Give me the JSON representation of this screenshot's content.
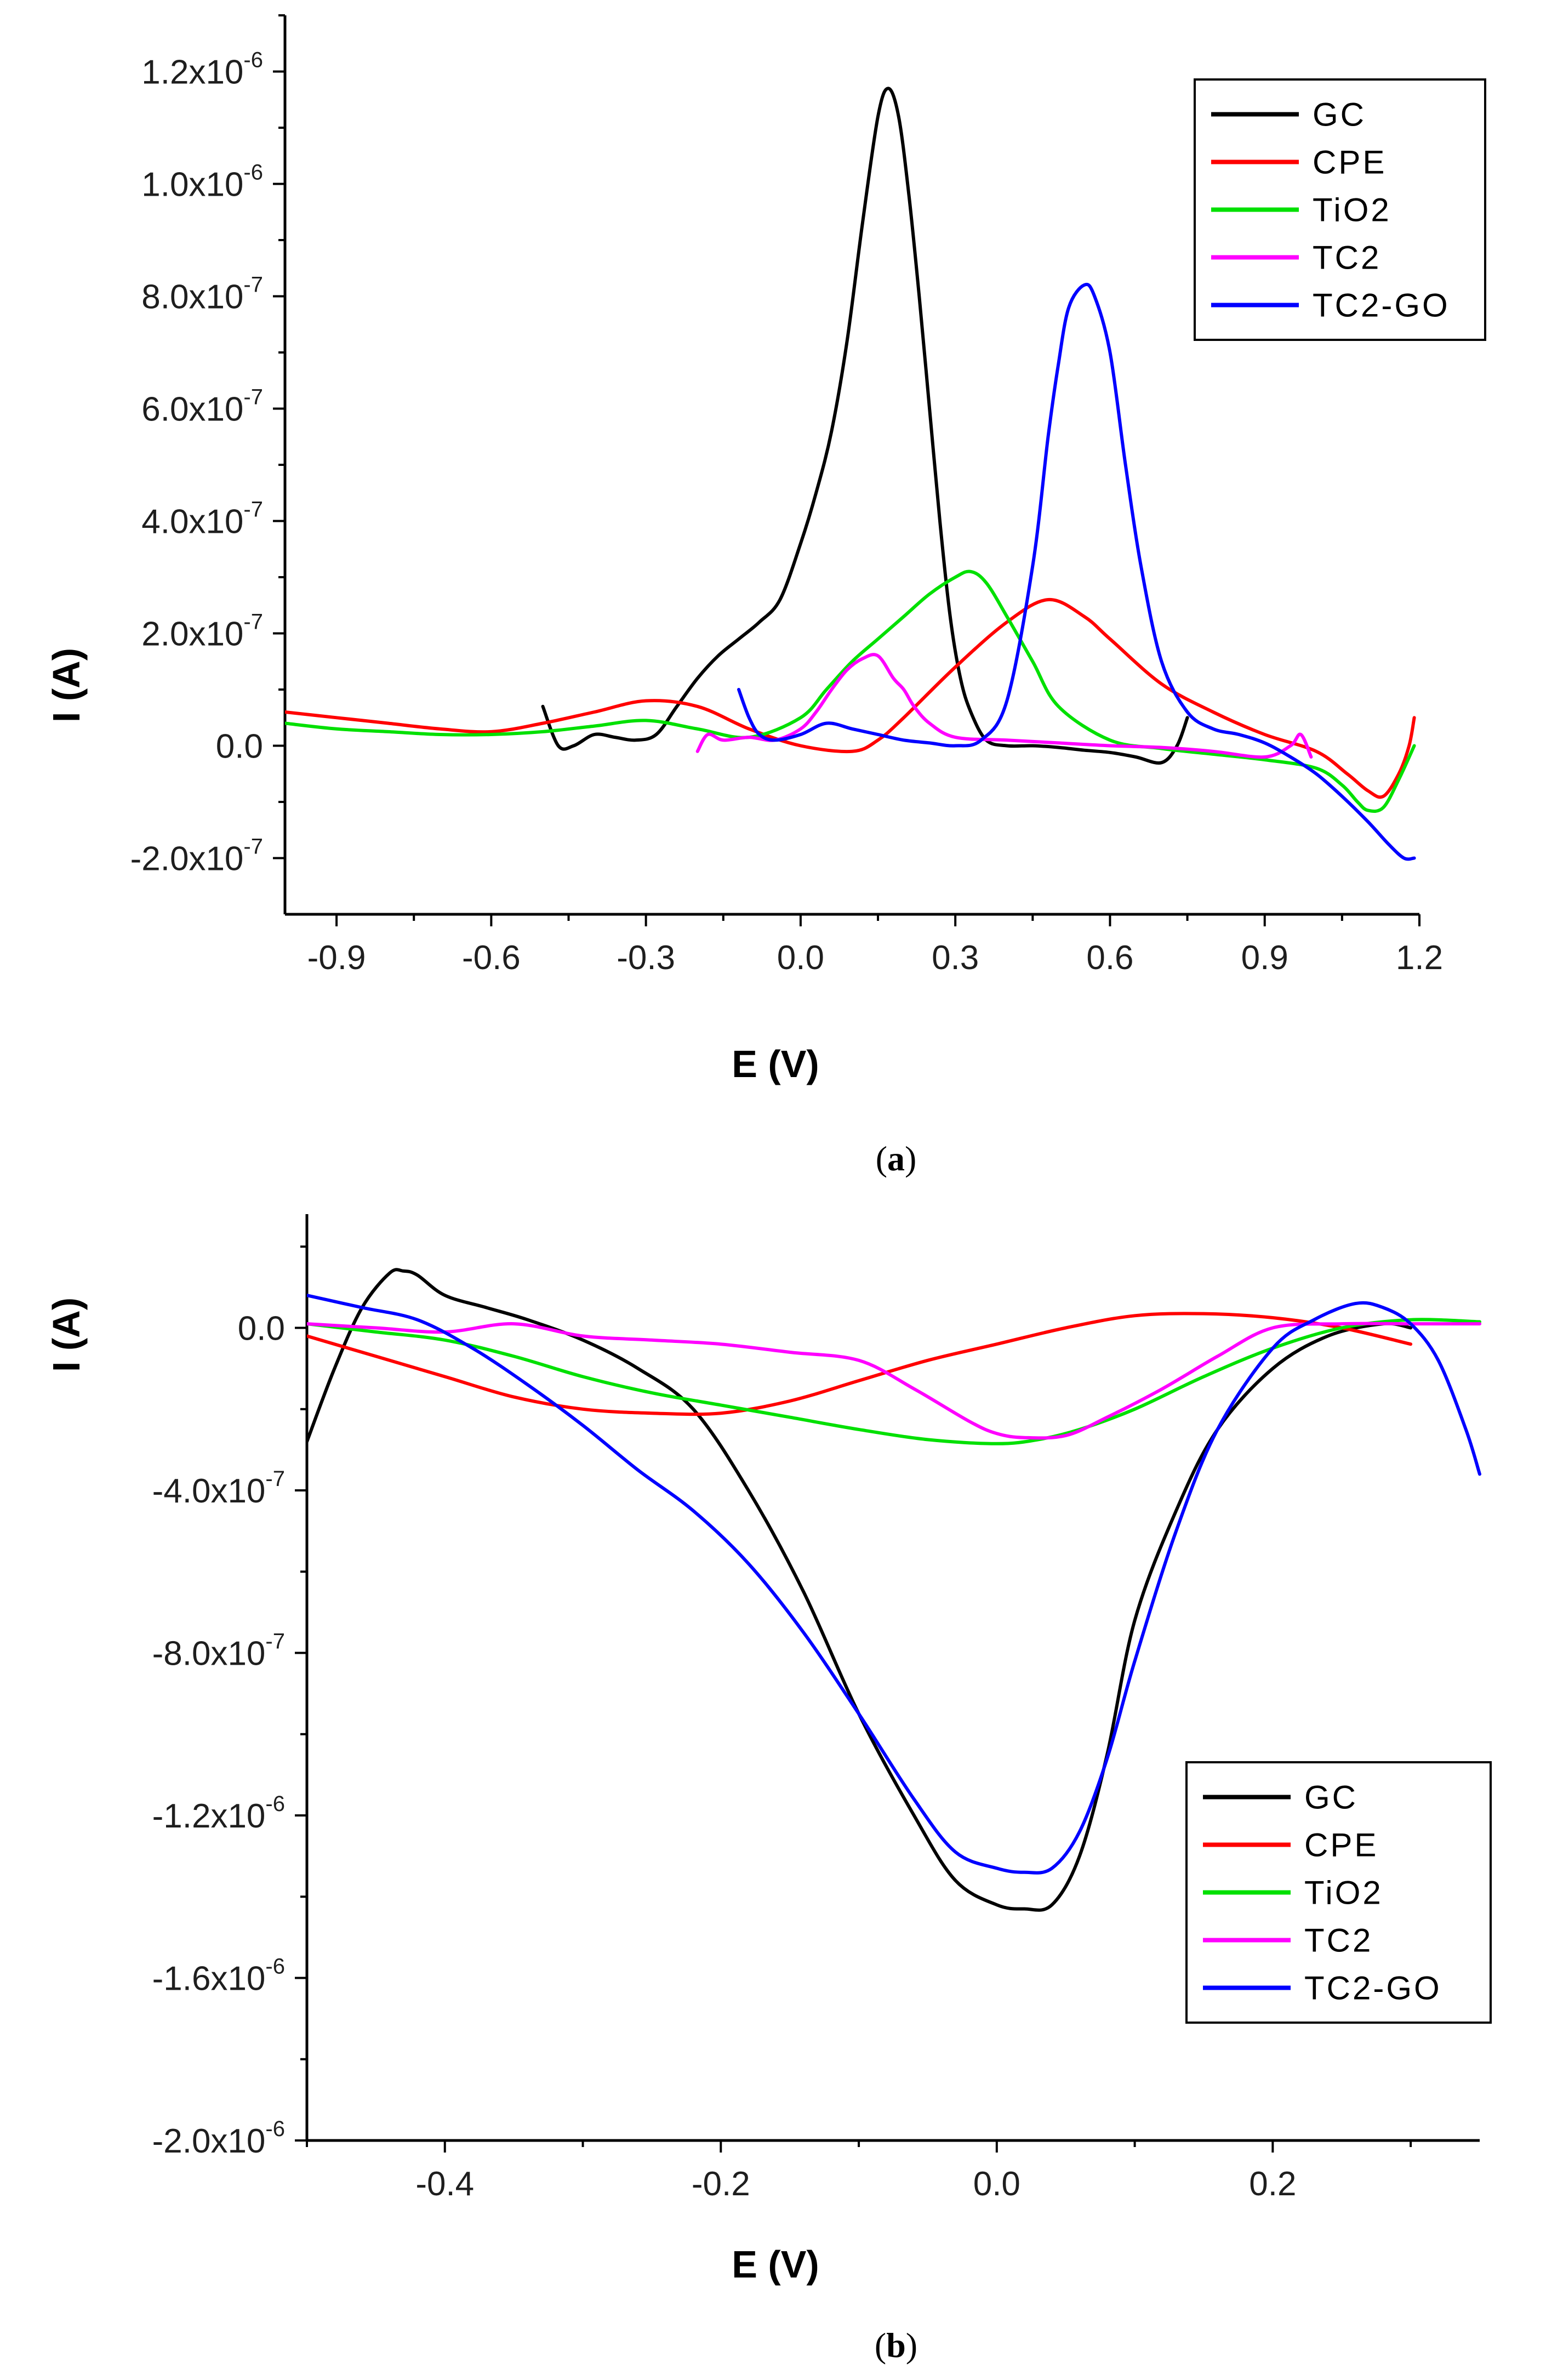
{
  "colors": {
    "GC": "#000000",
    "CPE": "#ff0000",
    "TiO2": "#00e000",
    "TC2": "#ff00ff",
    "TC2-GO": "#0000ff"
  },
  "captions": {
    "a_open": "(",
    "a_letter": "a",
    "a_close": ")",
    "b_open": "(",
    "b_letter": "b",
    "b_close": ")"
  },
  "chart_data": [
    {
      "id": "a",
      "type": "line",
      "xlabel": "E (V)",
      "ylabel": "I (A)",
      "xlim": [
        -1.0,
        1.2
      ],
      "ylim": [
        -3e-07,
        1.3e-06
      ],
      "xticks": [
        -0.9,
        -0.6,
        -0.3,
        0.0,
        0.3,
        0.6,
        0.9,
        1.2
      ],
      "xtick_labels": [
        "-0.9",
        "-0.6",
        "-0.3",
        "0.0",
        "0.3",
        "0.6",
        "0.9",
        "1.2"
      ],
      "yticks": [
        {
          "value": 1.2e-06,
          "mant": "1.2x10",
          "exp": "-6"
        },
        {
          "value": 1e-06,
          "mant": "1.0x10",
          "exp": "-6"
        },
        {
          "value": 8e-07,
          "mant": "8.0x10",
          "exp": "-7"
        },
        {
          "value": 6e-07,
          "mant": "6.0x10",
          "exp": "-7"
        },
        {
          "value": 4e-07,
          "mant": "4.0x10",
          "exp": "-7"
        },
        {
          "value": 2e-07,
          "mant": "2.0x10",
          "exp": "-7"
        },
        {
          "value": 0.0,
          "mant": "0.0",
          "exp": ""
        },
        {
          "value": -2e-07,
          "mant": "-2.0x10",
          "exp": "-7"
        }
      ],
      "legend_position": "top-right",
      "series": [
        {
          "name": "GC",
          "x": [
            -0.5,
            -0.47,
            -0.44,
            -0.4,
            -0.36,
            -0.32,
            -0.28,
            -0.24,
            -0.2,
            -0.16,
            -0.12,
            -0.08,
            -0.04,
            0.0,
            0.03,
            0.06,
            0.09,
            0.12,
            0.15,
            0.17,
            0.19,
            0.21,
            0.23,
            0.25,
            0.27,
            0.29,
            0.31,
            0.33,
            0.36,
            0.4,
            0.45,
            0.5,
            0.55,
            0.6,
            0.65,
            0.7,
            0.73,
            0.75
          ],
          "y": [
            7e-08,
            0,
            0,
            2e-08,
            1.5e-08,
            1e-08,
            2e-08,
            7e-08,
            1.2e-07,
            1.6e-07,
            1.9e-07,
            2.2e-07,
            2.6e-07,
            3.6e-07,
            4.5e-07,
            5.6e-07,
            7.2e-07,
            9.3e-07,
            1.12e-06,
            1.17e-06,
            1.12e-06,
            9.8e-07,
            8e-07,
            6e-07,
            4e-07,
            2.3e-07,
            1.2e-07,
            6e-08,
            1e-08,
            0,
            0,
            -3e-09,
            -8e-09,
            -1.2e-08,
            -2e-08,
            -3e-08,
            0,
            5e-08
          ]
        },
        {
          "name": "CPE",
          "x": [
            -1.0,
            -0.9,
            -0.8,
            -0.7,
            -0.6,
            -0.5,
            -0.4,
            -0.3,
            -0.2,
            -0.1,
            0.0,
            0.1,
            0.15,
            0.2,
            0.3,
            0.4,
            0.48,
            0.55,
            0.6,
            0.7,
            0.8,
            0.9,
            1.0,
            1.06,
            1.1,
            1.13,
            1.16,
            1.18,
            1.19
          ],
          "y": [
            6e-08,
            5e-08,
            4e-08,
            3e-08,
            2.5e-08,
            4e-08,
            6e-08,
            8e-08,
            7e-08,
            3e-08,
            0,
            -1e-08,
            1e-08,
            5e-08,
            1.4e-07,
            2.2e-07,
            2.6e-07,
            2.3e-07,
            1.9e-07,
            1.1e-07,
            6e-08,
            2e-08,
            -1e-08,
            -5e-08,
            -8e-08,
            -9e-08,
            -5e-08,
            0,
            5e-08
          ]
        },
        {
          "name": "TiO2",
          "x": [
            -1.0,
            -0.9,
            -0.8,
            -0.7,
            -0.6,
            -0.5,
            -0.4,
            -0.3,
            -0.2,
            -0.1,
            0.0,
            0.05,
            0.1,
            0.15,
            0.2,
            0.25,
            0.3,
            0.33,
            0.36,
            0.4,
            0.45,
            0.5,
            0.6,
            0.7,
            0.8,
            0.9,
            1.0,
            1.05,
            1.08,
            1.1,
            1.13,
            1.16,
            1.19
          ],
          "y": [
            4e-08,
            3e-08,
            2.5e-08,
            2e-08,
            2e-08,
            2.5e-08,
            3.5e-08,
            4.5e-08,
            3e-08,
            1.5e-08,
            5e-08,
            1e-07,
            1.5e-07,
            1.9e-07,
            2.3e-07,
            2.7e-07,
            3e-07,
            3.1e-07,
            2.9e-07,
            2.3e-07,
            1.5e-07,
            7e-08,
            1e-08,
            -5e-09,
            -1.5e-08,
            -2.5e-08,
            -4e-08,
            -7e-08,
            -1e-07,
            -1.15e-07,
            -1.1e-07,
            -6e-08,
            0
          ]
        },
        {
          "name": "TC2",
          "x": [
            -0.2,
            -0.18,
            -0.15,
            -0.1,
            -0.05,
            0.0,
            0.03,
            0.06,
            0.09,
            0.12,
            0.15,
            0.18,
            0.2,
            0.22,
            0.25,
            0.3,
            0.4,
            0.5,
            0.6,
            0.7,
            0.8,
            0.9,
            0.95,
            0.97,
            0.99
          ],
          "y": [
            -1e-08,
            2e-08,
            1e-08,
            1.5e-08,
            1e-08,
            3e-08,
            6e-08,
            1e-07,
            1.35e-07,
            1.55e-07,
            1.6e-07,
            1.2e-07,
            1e-07,
            7e-08,
            4e-08,
            1.5e-08,
            1e-08,
            5e-09,
            0,
            -3e-09,
            -1e-08,
            -2e-08,
            0,
            2e-08,
            -2e-08
          ]
        },
        {
          "name": "TC2-GO",
          "x": [
            -0.12,
            -0.1,
            -0.08,
            -0.05,
            0.0,
            0.05,
            0.1,
            0.15,
            0.2,
            0.25,
            0.3,
            0.35,
            0.4,
            0.45,
            0.48,
            0.5,
            0.52,
            0.55,
            0.57,
            0.6,
            0.63,
            0.66,
            0.7,
            0.75,
            0.8,
            0.85,
            0.9,
            0.95,
            1.0,
            1.05,
            1.1,
            1.14,
            1.17,
            1.19
          ],
          "y": [
            1e-07,
            5e-08,
            2e-08,
            1e-08,
            2e-08,
            4e-08,
            3e-08,
            2e-08,
            1e-08,
            5e-09,
            0,
            1e-08,
            8e-08,
            3.2e-07,
            5.5e-07,
            6.8e-07,
            7.8e-07,
            8.2e-07,
            8e-07,
            7e-07,
            5e-07,
            3.2e-07,
            1.5e-07,
            6e-08,
            3e-08,
            2e-08,
            5e-09,
            -2e-08,
            -5e-08,
            -9e-08,
            -1.35e-07,
            -1.75e-07,
            -2e-07,
            -2e-07
          ]
        }
      ]
    },
    {
      "id": "b",
      "type": "line",
      "xlabel": "E (V)",
      "ylabel": "I (A)",
      "xlim": [
        -0.5,
        0.35
      ],
      "ylim": [
        -2e-06,
        2.8e-07
      ],
      "xticks": [
        -0.4,
        -0.2,
        0.0,
        0.2
      ],
      "xtick_labels": [
        "-0.4",
        "-0.2",
        "0.0",
        "0.2"
      ],
      "yticks": [
        {
          "value": 0.0,
          "mant": "0.0",
          "exp": ""
        },
        {
          "value": -4e-07,
          "mant": "-4.0x10",
          "exp": "-7"
        },
        {
          "value": -8e-07,
          "mant": "-8.0x10",
          "exp": "-7"
        },
        {
          "value": -1.2e-06,
          "mant": "-1.2x10",
          "exp": "-6"
        },
        {
          "value": -1.6e-06,
          "mant": "-1.6x10",
          "exp": "-6"
        },
        {
          "value": -2e-06,
          "mant": "-2.0x10",
          "exp": "-6"
        }
      ],
      "legend_position": "bottom-right",
      "series": [
        {
          "name": "GC",
          "x": [
            -0.5,
            -0.48,
            -0.46,
            -0.44,
            -0.43,
            -0.42,
            -0.4,
            -0.37,
            -0.34,
            -0.3,
            -0.26,
            -0.22,
            -0.18,
            -0.14,
            -0.1,
            -0.06,
            -0.03,
            0.0,
            0.02,
            0.04,
            0.06,
            0.08,
            0.1,
            0.13,
            0.16,
            0.2,
            0.24,
            0.28,
            0.3
          ],
          "y": [
            -2.8e-07,
            -1e-07,
            5e-08,
            1.35e-07,
            1.4e-07,
            1.3e-07,
            8e-08,
            5e-08,
            2e-08,
            -3e-08,
            -1e-07,
            -2e-07,
            -4e-07,
            -6.5e-07,
            -9.5e-07,
            -1.2e-06,
            -1.36e-06,
            -1.42e-06,
            -1.43e-06,
            -1.42e-06,
            -1.3e-06,
            -1.05e-06,
            -7.2e-07,
            -4.5e-07,
            -2.5e-07,
            -1e-07,
            -2e-08,
            1e-08,
            0
          ]
        },
        {
          "name": "CPE",
          "x": [
            -0.5,
            -0.45,
            -0.4,
            -0.35,
            -0.3,
            -0.25,
            -0.2,
            -0.15,
            -0.1,
            -0.05,
            0.0,
            0.05,
            0.1,
            0.15,
            0.2,
            0.25,
            0.3
          ],
          "y": [
            -2e-08,
            -7e-08,
            -1.2e-07,
            -1.7e-07,
            -2e-07,
            -2.1e-07,
            -2.1e-07,
            -1.8e-07,
            -1.3e-07,
            -8e-08,
            -4e-08,
            0,
            3e-08,
            3.5e-08,
            2.5e-08,
            0,
            -4e-08
          ]
        },
        {
          "name": "TiO2",
          "x": [
            -0.5,
            -0.45,
            -0.4,
            -0.35,
            -0.3,
            -0.25,
            -0.2,
            -0.15,
            -0.1,
            -0.05,
            0.0,
            0.03,
            0.06,
            0.1,
            0.15,
            0.2,
            0.25,
            0.3,
            0.35
          ],
          "y": [
            1e-08,
            -1e-08,
            -3e-08,
            -7e-08,
            -1.2e-07,
            -1.6e-07,
            -1.9e-07,
            -2.2e-07,
            -2.5e-07,
            -2.75e-07,
            -2.85e-07,
            -2.75e-07,
            -2.5e-07,
            -2e-07,
            -1.2e-07,
            -5e-08,
            0,
            2e-08,
            1.5e-08
          ]
        },
        {
          "name": "TC2",
          "x": [
            -0.5,
            -0.45,
            -0.4,
            -0.35,
            -0.3,
            -0.25,
            -0.2,
            -0.15,
            -0.1,
            -0.06,
            -0.02,
            0.0,
            0.02,
            0.05,
            0.08,
            0.12,
            0.16,
            0.2,
            0.25,
            0.3,
            0.35
          ],
          "y": [
            1e-08,
            0,
            -1e-08,
            1e-08,
            -2e-08,
            -3e-08,
            -4e-08,
            -6e-08,
            -8e-08,
            -1.5e-07,
            -2.3e-07,
            -2.6e-07,
            -2.7e-07,
            -2.65e-07,
            -2.2e-07,
            -1.5e-07,
            -7e-08,
            0,
            1e-08,
            1e-08,
            1e-08
          ]
        },
        {
          "name": "TC2-GO",
          "x": [
            -0.5,
            -0.46,
            -0.42,
            -0.38,
            -0.34,
            -0.3,
            -0.26,
            -0.22,
            -0.18,
            -0.14,
            -0.1,
            -0.06,
            -0.03,
            0.0,
            0.02,
            0.04,
            0.06,
            0.08,
            0.1,
            0.13,
            0.16,
            0.2,
            0.23,
            0.26,
            0.28,
            0.3,
            0.32,
            0.34,
            0.35
          ],
          "y": [
            8e-08,
            5e-08,
            2e-08,
            -5e-08,
            -1.4e-07,
            -2.4e-07,
            -3.5e-07,
            -4.5e-07,
            -5.8e-07,
            -7.5e-07,
            -9.5e-07,
            -1.16e-06,
            -1.29e-06,
            -1.33e-06,
            -1.34e-06,
            -1.33e-06,
            -1.24e-06,
            -1.06e-06,
            -8.2e-07,
            -5e-07,
            -2.5e-07,
            -5e-08,
            2e-08,
            6e-08,
            5e-08,
            1e-08,
            -8e-08,
            -2.5e-07,
            -3.6e-07
          ]
        }
      ]
    }
  ]
}
